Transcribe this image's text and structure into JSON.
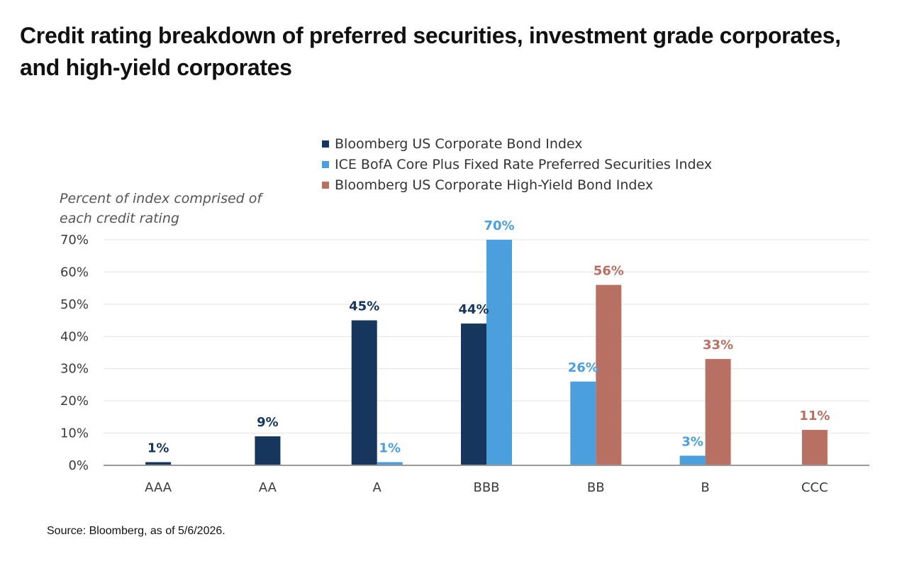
{
  "title": "Credit rating breakdown of preferred securities, investment grade corporates, and high-yield corporates",
  "source": "Source: Bloomberg, as of 5/6/2026.",
  "chart_data": {
    "type": "bar",
    "title": "Credit rating breakdown of preferred securities, investment grade corporates, and high-yield corporates",
    "ylabel_lines": [
      "Percent of index comprised of",
      "each credit rating"
    ],
    "xlabel": "",
    "ylim": [
      0,
      70
    ],
    "yticks": [
      0,
      10,
      20,
      30,
      40,
      50,
      60,
      70
    ],
    "ytick_labels": [
      "0%",
      "10%",
      "20%",
      "30%",
      "40%",
      "50%",
      "60%",
      "70%"
    ],
    "grid": true,
    "legend_position": "top",
    "categories": [
      "AAA",
      "AA",
      "A",
      "BBB",
      "BB",
      "B",
      "CCC"
    ],
    "series": [
      {
        "name": "Bloomberg US Corporate Bond Index",
        "color": "#17365d",
        "values": [
          1,
          9,
          45,
          44,
          null,
          null,
          null
        ],
        "labels": [
          "1%",
          "9%",
          "45%",
          "44%",
          "",
          "",
          ""
        ]
      },
      {
        "name": "ICE BofA Core Plus Fixed Rate Preferred Securities Index",
        "color": "#4a9fdc",
        "values": [
          null,
          null,
          1,
          70,
          26,
          3,
          null
        ],
        "labels": [
          "",
          "",
          "1%",
          "70%",
          "26%",
          "3%",
          ""
        ]
      },
      {
        "name": "Bloomberg US Corporate High-Yield Bond Index",
        "color": "#b87063",
        "values": [
          null,
          null,
          null,
          null,
          56,
          33,
          11
        ],
        "labels": [
          "",
          "",
          "",
          "",
          "56%",
          "33%",
          "11%"
        ]
      }
    ]
  }
}
